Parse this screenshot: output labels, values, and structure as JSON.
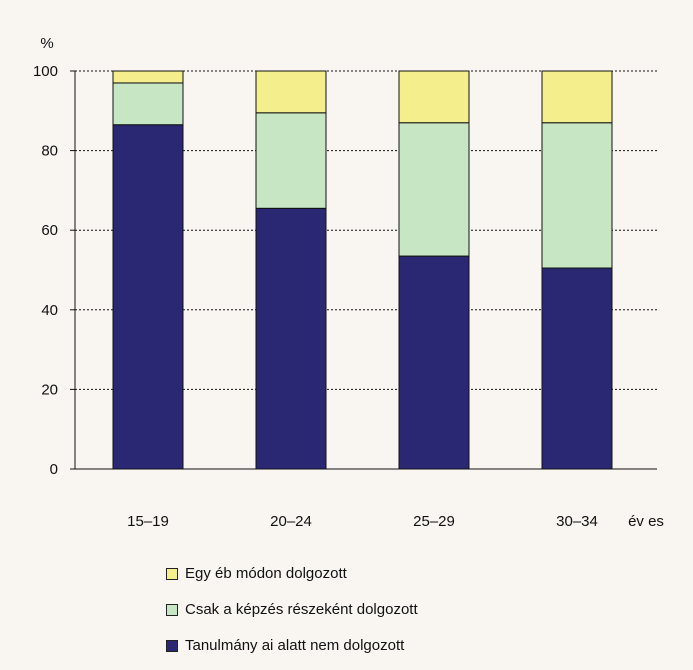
{
  "chart_data": {
    "type": "bar",
    "stacked": true,
    "ylabel": "%",
    "x_unit_label": "év es",
    "ylim": [
      0,
      100
    ],
    "yticks": [
      0,
      20,
      40,
      60,
      80,
      100
    ],
    "grid": true,
    "legend_placement": "bottom",
    "categories": [
      "15–19",
      "20–24",
      "25–29",
      "30–34"
    ],
    "series": [
      {
        "name": "Tanulmány ai alatt nem dolgozott",
        "color": "#2a2872",
        "values": [
          86.5,
          65.5,
          53.5,
          50.5
        ]
      },
      {
        "name": "Csak a képzés részeként dolgozott",
        "color": "#c6e6c4",
        "values": [
          10.5,
          24.0,
          33.5,
          36.5
        ]
      },
      {
        "name": "Egy éb módon dolgozott",
        "color": "#f4ef8c",
        "values": [
          3.0,
          10.5,
          13.0,
          13.0
        ]
      }
    ],
    "legend_order": [
      2,
      1,
      0
    ]
  }
}
